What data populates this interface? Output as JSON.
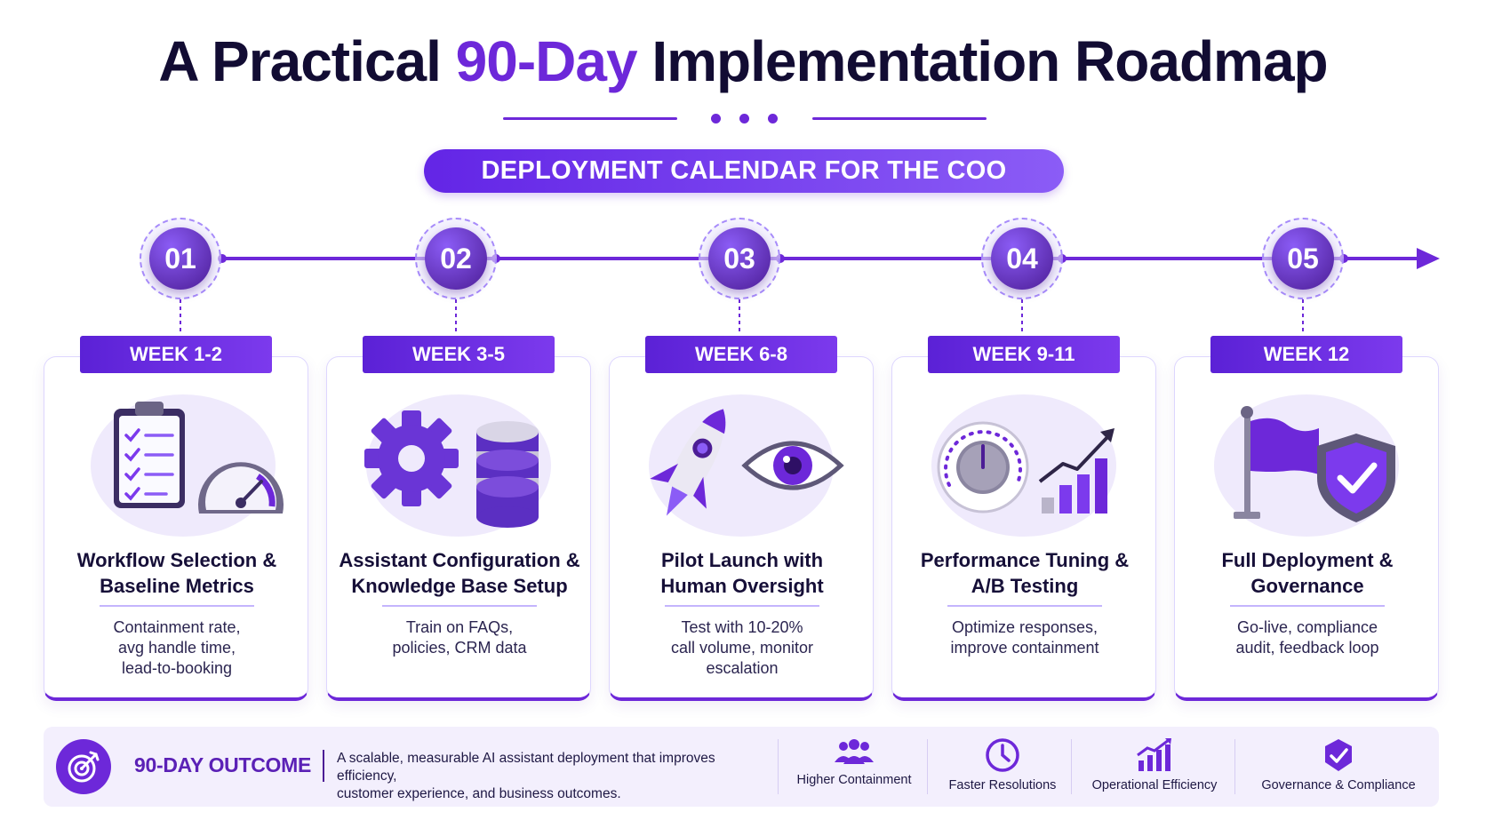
{
  "header": {
    "title_prefix": "A Practical",
    "title_accent": "90-Day",
    "title_suffix": "Implementation Roadmap",
    "banner": "DEPLOYMENT CALENDAR FOR THE COO"
  },
  "colors": {
    "primary": "#6d28d9",
    "dark_text": "#120c33",
    "panel": "#f3effd"
  },
  "steps": [
    {
      "number": "01",
      "week": "WEEK 1-2",
      "title_line1": "Workflow Selection &",
      "title_line2": "Baseline Metrics",
      "desc_line1": "Containment rate,",
      "desc_line2": "avg handle time,",
      "desc_line3": "lead-to-booking",
      "icons": [
        "clipboard-checklist-icon",
        "speedometer-icon"
      ]
    },
    {
      "number": "02",
      "week": "WEEK 3-5",
      "title_line1": "Assistant Configuration &",
      "title_line2": "Knowledge Base Setup",
      "desc_line1": "Train on FAQs,",
      "desc_line2": "policies, CRM data",
      "desc_line3": "",
      "icons": [
        "gear-icon",
        "database-icon"
      ]
    },
    {
      "number": "03",
      "week": "WEEK 6-8",
      "title_line1": "Pilot Launch with",
      "title_line2": "Human Oversight",
      "desc_line1": "Test with 10-20%",
      "desc_line2": "call volume, monitor",
      "desc_line3": "escalation",
      "icons": [
        "rocket-icon",
        "eye-icon"
      ]
    },
    {
      "number": "04",
      "week": "WEEK 9-11",
      "title_line1": "Performance Tuning &",
      "title_line2": "A/B Testing",
      "desc_line1": "Optimize responses,",
      "desc_line2": "improve containment",
      "desc_line3": "",
      "icons": [
        "dial-knob-icon",
        "bar-chart-growth-icon"
      ]
    },
    {
      "number": "05",
      "week": "WEEK 12",
      "title_line1": "Full Deployment &",
      "title_line2": "Governance",
      "desc_line1": "Go-live, compliance",
      "desc_line2": "audit, feedback loop",
      "desc_line3": "",
      "icons": [
        "flag-icon",
        "shield-check-icon"
      ]
    }
  ],
  "outcome": {
    "title": "90-DAY OUTCOME",
    "text_line1": "A scalable, measurable AI assistant deployment that improves efficiency,",
    "text_line2": "customer experience, and business outcomes.",
    "icon": "target-icon",
    "metrics": [
      {
        "label": "Higher Containment",
        "icon": "users-icon"
      },
      {
        "label": "Faster Resolutions",
        "icon": "clock-icon"
      },
      {
        "label": "Operational Efficiency",
        "icon": "bar-chart-icon"
      },
      {
        "label": "Governance & Compliance",
        "icon": "badge-check-icon"
      }
    ]
  }
}
